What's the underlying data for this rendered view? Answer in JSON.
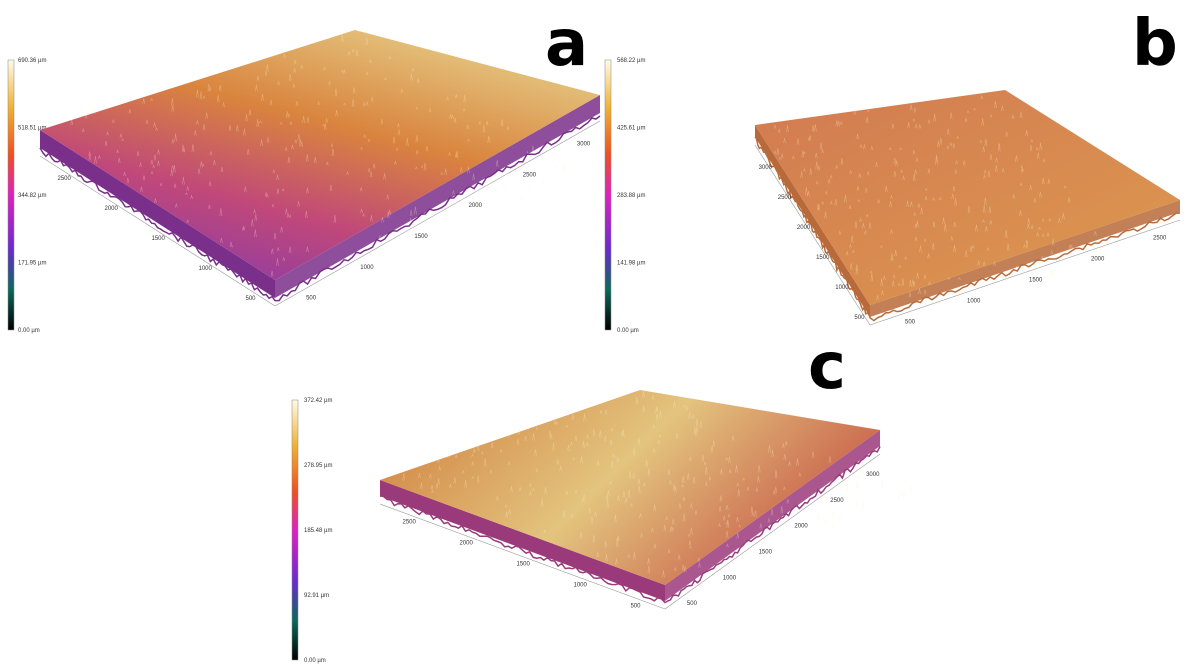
{
  "panels": [
    {
      "label": "a",
      "colorbar": [
        "690.36 µm",
        "518.51 µm",
        "344.82 µm",
        "171.95 µm",
        "0.00 µm"
      ],
      "axis_left": [
        "2500",
        "2000",
        "1500",
        "1000",
        "500"
      ],
      "axis_right": [
        "500",
        "1000",
        "1500",
        "2000",
        "2500",
        "3000"
      ]
    },
    {
      "label": "b",
      "colorbar": [
        "568.22 µm",
        "425.61 µm",
        "283.88 µm",
        "141.98 µm",
        "0.00 µm"
      ],
      "axis_left": [
        "3000",
        "2500",
        "2000",
        "1500",
        "1000",
        "500"
      ],
      "axis_right": [
        "500",
        "1000",
        "1500",
        "2000",
        "2500"
      ]
    },
    {
      "label": "c",
      "colorbar": [
        "372.42 µm",
        "278.95 µm",
        "185.48 µm",
        "92.91 µm",
        "0.00 µm"
      ],
      "axis_left": [
        "2500",
        "2000",
        "1500",
        "1000",
        "500"
      ],
      "axis_right": [
        "500",
        "1000",
        "1500",
        "2000",
        "2500",
        "3000"
      ]
    }
  ]
}
